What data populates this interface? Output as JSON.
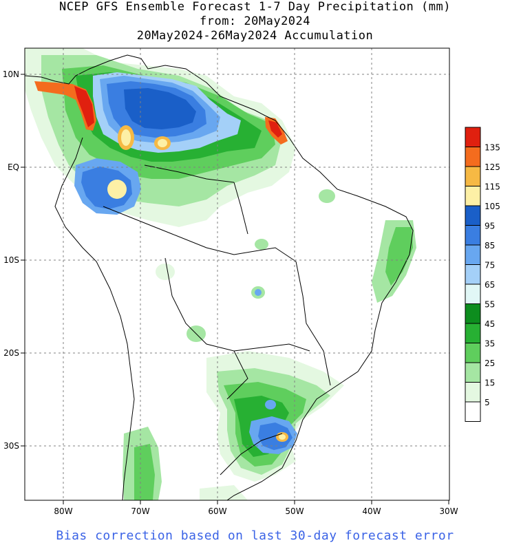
{
  "header": {
    "title_line1": "NCEP GFS Ensemble Forecast 1-7 Day Precipitation (mm)",
    "title_line2": "from: 20May2024",
    "title_line3": "20May2024-26May2024 Accumulation"
  },
  "map": {
    "lat_labels": [
      "10N",
      "EQ",
      "10S",
      "20S",
      "30S"
    ],
    "lon_labels": [
      "80W",
      "70W",
      "60W",
      "50W",
      "40W",
      "30W"
    ]
  },
  "legend": {
    "items": [
      {
        "label": "135",
        "color": "#e0200f"
      },
      {
        "label": "125",
        "color": "#f46c1e"
      },
      {
        "label": "115",
        "color": "#f6b944"
      },
      {
        "label": "105",
        "color": "#fdf0a6"
      },
      {
        "label": "95",
        "color": "#1a5fc8"
      },
      {
        "label": "85",
        "color": "#3a7ee1"
      },
      {
        "label": "75",
        "color": "#68a7f0"
      },
      {
        "label": "65",
        "color": "#a4d0f8"
      },
      {
        "label": "55",
        "color": "#e1f7f6"
      },
      {
        "label": "45",
        "color": "#0d8d1e"
      },
      {
        "label": "35",
        "color": "#27b033"
      },
      {
        "label": "25",
        "color": "#5fce5d"
      },
      {
        "label": "15",
        "color": "#a5e6a3"
      },
      {
        "label": "5",
        "color": "#e4f8e1"
      },
      {
        "label": "",
        "color": "#ffffff"
      }
    ]
  },
  "footer": {
    "text": "Bias correction based on last 30-day forecast error"
  }
}
